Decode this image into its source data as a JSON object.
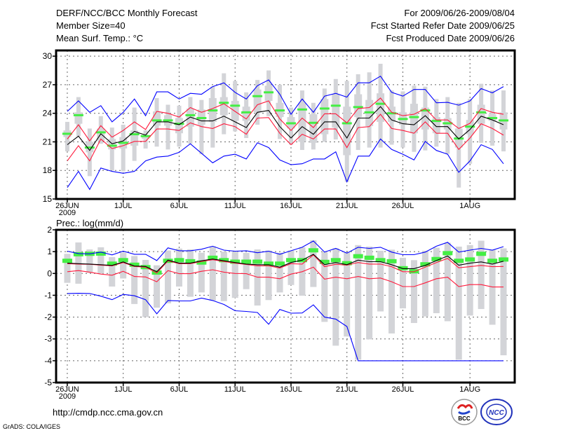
{
  "header": {
    "title": "DERF/NCC/BCC Monthly Forecast",
    "member_size": "Member Size=40",
    "variable": "Mean Surf. Temp.: °C",
    "period": "For 2009/06/26-2009/08/04",
    "started": "Fcst Started Refer Date 2009/06/25",
    "produced": "Fcst Produced Date 2009/06/26"
  },
  "footer": {
    "url": "http://cmdp.ncc.cma.gov.cn",
    "grads": "GrADS: COLA/IGES",
    "logo_bcc": "BCC",
    "logo_ncc": "NCC"
  },
  "colors": {
    "max_min": "#0000ff",
    "spread": "#ff1a3c",
    "mean": "#000000",
    "green": "#44ee44",
    "gray": "#d3d4d8",
    "grid": "#666666"
  },
  "chart_data": [
    {
      "type": "line",
      "title": "Mean Surf. Temp.: °C",
      "xlabel": "",
      "ylabel": "",
      "x_start": "2009-06-26",
      "n_days": 40,
      "xlim": [
        -1,
        40
      ],
      "ylim": [
        15,
        30.6
      ],
      "yticks": [
        15,
        18,
        21,
        24,
        27,
        30
      ],
      "xticks": [
        {
          "day": 0,
          "label": "26JUN",
          "sub": "2009"
        },
        {
          "day": 5,
          "label": "1JUL"
        },
        {
          "day": 10,
          "label": "6JUL"
        },
        {
          "day": 15,
          "label": "11JUL"
        },
        {
          "day": 20,
          "label": "16JUL"
        },
        {
          "day": 25,
          "label": "21JUL"
        },
        {
          "day": 30,
          "label": "26JUL"
        },
        {
          "day": 36,
          "label": "1AUG"
        }
      ],
      "grid": true,
      "whisker_low": [
        20.0,
        21.6,
        17.4,
        20.8,
        18.0,
        17.9,
        19.0,
        20.3,
        20.5,
        20.2,
        20.5,
        20.8,
        19.7,
        20.4,
        21.8,
        22.1,
        21.4,
        22.8,
        23.7,
        21.3,
        20.7,
        20.15,
        20.2,
        21.0,
        21.25,
        16.8,
        20.15,
        20.4,
        20.4,
        20.7,
        20.4,
        19.95,
        20.1,
        20.5,
        19.75,
        16.2,
        18.7,
        20.9,
        20.6,
        20.0
      ],
      "whisker_high": [
        23.1,
        25.7,
        22.4,
        23.7,
        22.5,
        22.8,
        24.6,
        22.2,
        25.6,
        24.9,
        24.8,
        25.7,
        25.4,
        26.8,
        28.2,
        27.4,
        26.2,
        27.5,
        28.5,
        27.0,
        24.6,
        26.4,
        25.1,
        26.6,
        27.6,
        27.4,
        28.1,
        28.3,
        29.2,
        26.4,
        26.3,
        26.9,
        26.8,
        25.5,
        25.7,
        25.1,
        25.5,
        27.1,
        26.4,
        26.4
      ],
      "box_low": [
        21.5,
        22.9,
        19.9,
        21.1,
        20.2,
        20.3,
        20.6,
        21.3,
        22.7,
        22.7,
        21.9,
        22.6,
        22.8,
        23.1,
        23.8,
        23.2,
        23.2,
        24.1,
        25.3,
        23.6,
        22.4,
        21.0,
        20.9,
        21.8,
        22.5,
        19.6,
        23.6,
        22.65,
        23.1,
        23.1,
        22.8,
        21.9,
        22.3,
        21.9,
        22.3,
        20.4,
        21.8,
        22.9,
        23.2,
        22.3
      ],
      "box_high": [
        22.2,
        24.1,
        21.0,
        22.4,
        21.3,
        21.5,
        22.2,
        21.7,
        24.2,
        23.8,
        23.5,
        24.5,
        24.4,
        25.6,
        25.7,
        25.3,
        24.7,
        26.5,
        26.9,
        25.1,
        23.6,
        25.1,
        23.9,
        25.5,
        26.0,
        24.7,
        26.0,
        25.4,
        26.1,
        24.7,
        24.1,
        25.0,
        24.6,
        23.6,
        23.5,
        22.4,
        23.3,
        24.9,
        23.9,
        24.1
      ],
      "green": [
        21.85,
        23.8,
        20.4,
        22.0,
        20.6,
        20.9,
        21.8,
        21.6,
        23.25,
        23.25,
        22.9,
        23.8,
        23.5,
        24.3,
        25.1,
        24.8,
        24.1,
        25.8,
        26.2,
        24.3,
        22.95,
        24.4,
        23.0,
        24.5,
        24.8,
        22.95,
        24.65,
        24.1,
        25.0,
        24.0,
        23.4,
        23.6,
        24.3,
        23.2,
        22.95,
        21.35,
        22.6,
        24.1,
        23.5,
        23.25
      ],
      "series": [
        {
          "name": "max",
          "color": "#0000ff",
          "values": [
            24.2,
            25.3,
            24.1,
            24.8,
            23.1,
            24.1,
            25.5,
            23.75,
            26.25,
            26.25,
            25.5,
            26.1,
            26.0,
            26.8,
            27.2,
            26.2,
            25.5,
            26.9,
            27.5,
            26.0,
            23.9,
            25.5,
            24.1,
            25.8,
            26.1,
            25.7,
            27.2,
            27.2,
            27.9,
            26.2,
            25.8,
            26.5,
            26.5,
            25.1,
            25.15,
            24.85,
            25.3,
            26.6,
            26.15,
            26.8
          ]
        },
        {
          "name": "upper",
          "color": "#ff1a3c",
          "values": [
            21.3,
            22.8,
            21.1,
            22.7,
            21.5,
            22.2,
            23.1,
            22.3,
            24.2,
            24.0,
            23.6,
            24.6,
            24.1,
            24.5,
            25.0,
            24.2,
            23.4,
            24.9,
            25.3,
            23.4,
            22.2,
            23.5,
            22.5,
            23.95,
            23.95,
            23.0,
            24.5,
            24.6,
            25.6,
            24.1,
            23.75,
            23.9,
            24.5,
            23.3,
            23.3,
            22.4,
            22.95,
            24.5,
            24.1,
            23.9
          ]
        },
        {
          "name": "mean",
          "color": "#000000",
          "values": [
            20.7,
            21.6,
            20.1,
            21.85,
            20.8,
            21.1,
            22.1,
            21.7,
            23.1,
            23.1,
            22.8,
            23.6,
            23.2,
            23.2,
            23.7,
            23.1,
            22.5,
            24.1,
            24.3,
            22.6,
            21.4,
            22.6,
            21.8,
            23.1,
            23.1,
            21.4,
            23.5,
            23.5,
            24.7,
            23.3,
            22.9,
            22.8,
            23.75,
            22.6,
            22.6,
            21.3,
            22.3,
            23.7,
            23.3,
            22.8
          ]
        },
        {
          "name": "lower",
          "color": "#ff1a3c",
          "values": [
            19.0,
            20.6,
            19.0,
            21.3,
            20.3,
            20.6,
            21.05,
            21.05,
            22.35,
            22.35,
            22.2,
            23.0,
            22.6,
            22.4,
            22.9,
            22.6,
            21.8,
            23.5,
            23.55,
            21.9,
            20.7,
            21.8,
            21.3,
            22.35,
            22.35,
            20.4,
            22.5,
            22.6,
            23.9,
            22.4,
            22.2,
            21.9,
            23.1,
            21.9,
            21.9,
            20.2,
            21.4,
            22.9,
            22.4,
            21.7
          ]
        },
        {
          "name": "min",
          "color": "#0000ff",
          "values": [
            16.2,
            17.9,
            16.0,
            18.25,
            17.9,
            17.7,
            17.9,
            19.0,
            19.4,
            19.5,
            19.9,
            20.8,
            19.8,
            18.8,
            19.5,
            19.7,
            19.2,
            20.9,
            20.4,
            19.1,
            18.6,
            18.7,
            19.2,
            19.2,
            19.95,
            16.8,
            19.5,
            19.5,
            21.3,
            20.2,
            19.7,
            19.1,
            21.05,
            20.1,
            19.7,
            17.8,
            19.0,
            20.7,
            20.2,
            18.7
          ]
        }
      ]
    },
    {
      "type": "line",
      "title": "Prec.: log(mm/d)",
      "xlabel": "",
      "ylabel": "",
      "x_start": "2009-06-26",
      "n_days": 40,
      "xlim": [
        -1,
        40
      ],
      "ylim": [
        -5,
        2
      ],
      "yticks": [
        -5,
        -4,
        -3,
        -2,
        -1,
        0,
        1,
        2
      ],
      "xticks": [
        {
          "day": 0,
          "label": "26JUN",
          "sub": "2009"
        },
        {
          "day": 5,
          "label": "1JUL"
        },
        {
          "day": 10,
          "label": "6JUL"
        },
        {
          "day": 15,
          "label": "11JUL"
        },
        {
          "day": 20,
          "label": "16JUL"
        },
        {
          "day": 25,
          "label": "21JUL"
        },
        {
          "day": 30,
          "label": "26JUL"
        },
        {
          "day": 36,
          "label": "1AUG"
        }
      ],
      "grid": true,
      "whisker_low": [
        -0.43,
        -0.47,
        0.15,
        0.05,
        -0.6,
        -0.23,
        -1.4,
        -2.0,
        -1.57,
        -1.37,
        -0.6,
        -1.07,
        -0.87,
        -1.24,
        -1.27,
        -1.12,
        -0.72,
        -1.47,
        -1.22,
        -0.87,
        -0.53,
        -1.02,
        -0.62,
        -2.22,
        -3.31,
        -2.89,
        -3.95,
        -3.02,
        -1.74,
        -2.75,
        -1.6,
        -2.27,
        -1.97,
        -1.82,
        -2.19,
        -3.95,
        -1.93,
        -1.63,
        -2.35,
        -3.75
      ],
      "whisker_high": [
        0.9,
        1.42,
        1.1,
        1.2,
        0.75,
        0.95,
        0.8,
        0.62,
        0.37,
        1.05,
        1.14,
        1.1,
        0.95,
        1.24,
        1.0,
        1.0,
        0.95,
        1.1,
        1.05,
        0.95,
        1.05,
        1.2,
        1.52,
        0.98,
        1.15,
        0.98,
        1.3,
        1.23,
        1.04,
        1.09,
        0.72,
        0.61,
        1.04,
        1.18,
        1.41,
        1.23,
        1.3,
        1.5,
        1.09,
        1.15
      ],
      "box_low": [
        0.07,
        0.05,
        0.03,
        0.0,
        -0.03,
        0.13,
        -0.06,
        -0.08,
        -0.32,
        0.21,
        0.07,
        0.07,
        0.18,
        0.26,
        0.18,
        0.1,
        0.03,
        0.0,
        0.0,
        -0.11,
        0.1,
        0.21,
        0.48,
        0.0,
        0.1,
        0.0,
        0.21,
        0.14,
        0.14,
        0.0,
        -0.18,
        -0.18,
        -0.03,
        0.19,
        0.4,
        -0.02,
        0.07,
        0.13,
        0.03,
        0.16
      ],
      "box_high": [
        0.82,
        0.8,
        0.78,
        0.75,
        0.72,
        0.88,
        0.69,
        0.6,
        0.37,
        0.96,
        0.82,
        0.82,
        0.93,
        1.01,
        0.93,
        0.85,
        0.78,
        0.75,
        0.75,
        0.64,
        0.85,
        0.96,
        1.23,
        0.75,
        0.85,
        0.75,
        0.96,
        0.89,
        0.89,
        0.75,
        0.57,
        0.57,
        0.72,
        0.94,
        1.15,
        0.73,
        0.82,
        0.88,
        0.78,
        0.91
      ],
      "green": [
        0.58,
        0.88,
        0.9,
        0.91,
        0.45,
        0.61,
        0.4,
        0.29,
        0.04,
        0.58,
        0.61,
        0.56,
        0.5,
        0.72,
        0.61,
        0.54,
        0.54,
        0.54,
        0.45,
        0.45,
        0.61,
        0.61,
        1.06,
        0.53,
        0.61,
        0.47,
        0.79,
        0.72,
        0.61,
        0.56,
        0.24,
        0.1,
        0.42,
        0.66,
        0.93,
        0.58,
        0.64,
        0.9,
        0.58,
        0.64
      ],
      "series": [
        {
          "name": "max",
          "color": "#0000ff",
          "values": [
            1.02,
            0.91,
            0.9,
            0.98,
            0.85,
            1.02,
            0.88,
            0.88,
            0.59,
            1.17,
            1.04,
            1.04,
            1.11,
            1.25,
            1.07,
            1.02,
            1.04,
            0.95,
            1.02,
            0.88,
            1.04,
            1.2,
            1.49,
            0.98,
            1.15,
            0.93,
            1.2,
            1.15,
            1.2,
            0.98,
            0.86,
            0.86,
            0.98,
            1.25,
            1.43,
            0.98,
            1.07,
            1.15,
            1.07,
            1.23
          ]
        },
        {
          "name": "upper",
          "color": "#ff1a3c",
          "values": [
            0.45,
            0.43,
            0.42,
            0.38,
            0.35,
            0.5,
            0.32,
            0.29,
            0.02,
            0.58,
            0.45,
            0.45,
            0.55,
            0.63,
            0.55,
            0.47,
            0.41,
            0.35,
            0.35,
            0.25,
            0.45,
            0.43,
            0.85,
            0.31,
            0.42,
            0.38,
            0.5,
            0.43,
            0.43,
            0.31,
            0.08,
            0.08,
            0.29,
            0.5,
            0.69,
            0.26,
            0.31,
            0.37,
            0.31,
            0.32
          ]
        },
        {
          "name": "mean",
          "color": "#000000",
          "values": [
            0.47,
            0.45,
            0.43,
            0.4,
            0.37,
            0.53,
            0.34,
            0.32,
            0.08,
            0.61,
            0.47,
            0.47,
            0.58,
            0.66,
            0.58,
            0.5,
            0.43,
            0.4,
            0.4,
            0.29,
            0.5,
            0.61,
            0.88,
            0.4,
            0.5,
            0.4,
            0.61,
            0.54,
            0.54,
            0.4,
            0.22,
            0.22,
            0.37,
            0.59,
            0.8,
            0.38,
            0.47,
            0.53,
            0.43,
            0.56
          ]
        },
        {
          "name": "lower",
          "color": "#ff1a3c",
          "values": [
            0.08,
            0.13,
            0.06,
            -0.03,
            -0.08,
            0.1,
            -0.14,
            -0.16,
            -0.38,
            0.13,
            -0.01,
            -0.01,
            0.1,
            0.17,
            0.06,
            0.0,
            -0.01,
            -0.17,
            -0.17,
            -0.24,
            -0.03,
            0.08,
            0.29,
            -0.26,
            -0.17,
            -0.24,
            -0.14,
            -0.24,
            -0.21,
            -0.38,
            -0.6,
            -0.6,
            -0.43,
            -0.24,
            -0.17,
            -0.6,
            -0.51,
            -0.51,
            -0.62,
            -0.62
          ]
        },
        {
          "name": "min",
          "color": "#0000ff",
          "values": [
            -0.92,
            -0.91,
            -0.92,
            -1.04,
            -1.2,
            -0.96,
            -1.02,
            -1.2,
            -1.85,
            -1.24,
            -1.26,
            -1.26,
            -1.13,
            -1.24,
            -1.42,
            -1.71,
            -1.74,
            -1.79,
            -2.33,
            -1.65,
            -1.82,
            -1.81,
            -1.44,
            -2.0,
            -2.09,
            -2.43,
            -4.0,
            -4.0,
            -4.0,
            -4.0,
            -4.0,
            -4.0,
            -4.0,
            -4.0,
            -4.0,
            -4.0,
            -4.0,
            -4.0,
            -4.0,
            -4.0
          ]
        }
      ]
    }
  ]
}
